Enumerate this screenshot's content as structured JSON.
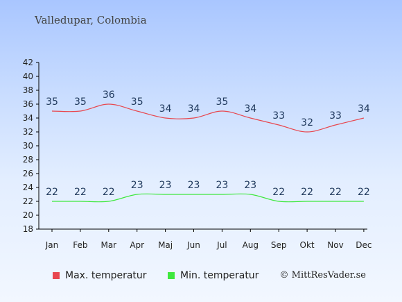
{
  "title": "Valledupar, Colombia",
  "copyright": "© MittResVader.se",
  "colors": {
    "max": "#e8474f",
    "min": "#3ee83e"
  },
  "chart_data": {
    "type": "line",
    "categories": [
      "Jan",
      "Feb",
      "Mar",
      "Apr",
      "Maj",
      "Jun",
      "Jul",
      "Aug",
      "Sep",
      "Okt",
      "Nov",
      "Dec"
    ],
    "series": [
      {
        "name": "Max. temperatur",
        "values": [
          35,
          35,
          36,
          35,
          34,
          34,
          35,
          34,
          33,
          32,
          33,
          34
        ]
      },
      {
        "name": "Min. temperatur",
        "values": [
          22,
          22,
          22,
          23,
          23,
          23,
          23,
          23,
          22,
          22,
          22,
          22
        ]
      }
    ],
    "yticks": [
      18,
      20,
      22,
      24,
      26,
      28,
      30,
      32,
      34,
      36,
      38,
      40,
      42
    ],
    "ylim": [
      18,
      42
    ],
    "grid": false,
    "legend": "bottom-left"
  }
}
